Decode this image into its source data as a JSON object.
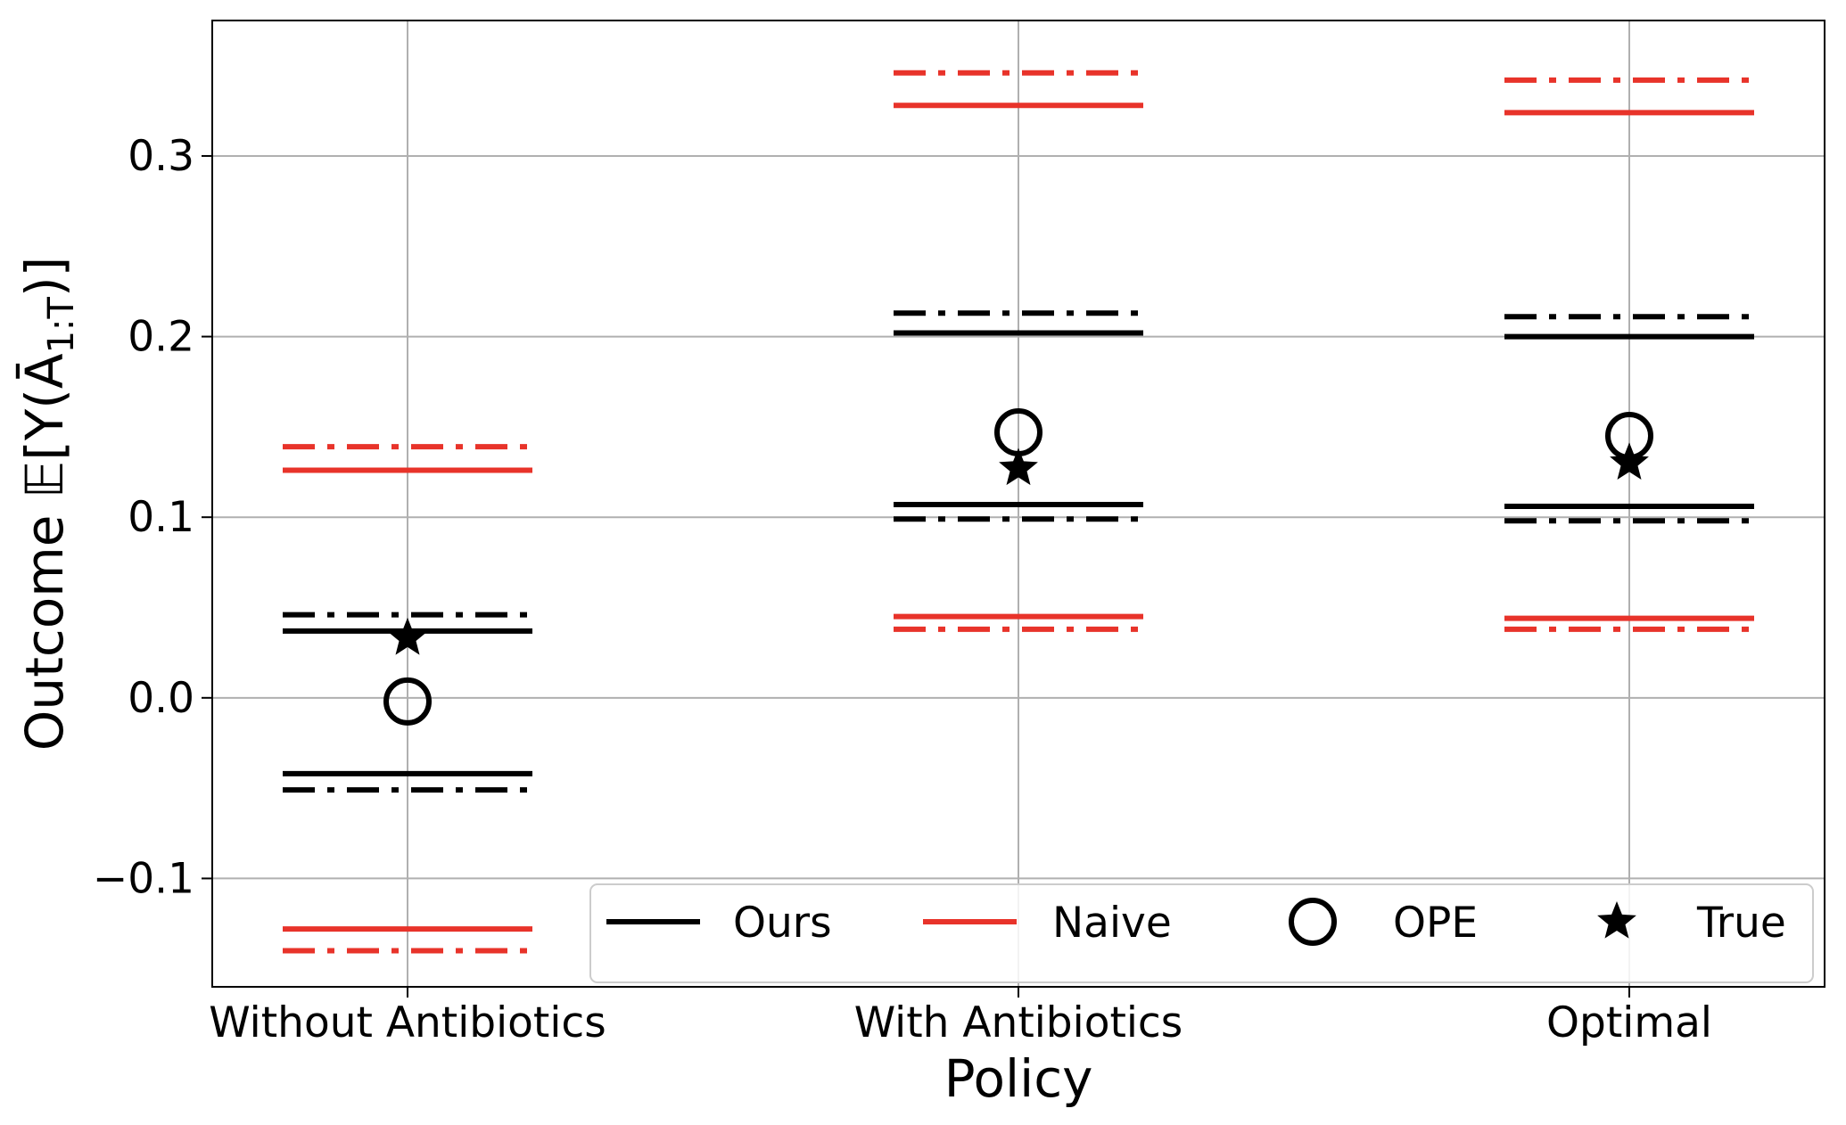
{
  "chart_data": {
    "type": "scatter",
    "xlabel": "Policy",
    "ylabel": "Outcome 𝔼[Y(Ā",
    "ylabel_sub": "1:T",
    "ylabel_end": ")]",
    "categories": [
      "Without Antibiotics",
      "With Antibiotics",
      "Optimal"
    ],
    "ylim": [
      -0.16,
      0.375
    ],
    "yticks": [
      -0.1,
      0.0,
      0.1,
      0.2,
      0.3
    ],
    "ytick_labels": [
      "−0.1",
      "0.0",
      "0.1",
      "0.2",
      "0.3"
    ],
    "grid": true,
    "legend_position": "lower-right",
    "legend": [
      {
        "name": "Ours",
        "marker": "line",
        "color": "#000000"
      },
      {
        "name": "Naive",
        "marker": "line",
        "color": "#e8332a"
      },
      {
        "name": "OPE",
        "marker": "circle",
        "color": "#000000"
      },
      {
        "name": "True",
        "marker": "star",
        "color": "#000000"
      }
    ],
    "series": [
      {
        "name": "Ours",
        "color": "#000000",
        "upper_solid": [
          0.037,
          0.202,
          0.2
        ],
        "upper_dashdot": [
          0.046,
          0.213,
          0.211
        ],
        "lower_solid": [
          -0.042,
          0.107,
          0.106
        ],
        "lower_dashdot": [
          -0.051,
          0.099,
          0.098
        ]
      },
      {
        "name": "Naive",
        "color": "#e8332a",
        "upper_solid": [
          0.126,
          0.328,
          0.324
        ],
        "upper_dashdot": [
          0.139,
          0.346,
          0.342
        ],
        "lower_solid": [
          -0.128,
          0.045,
          0.044
        ],
        "lower_dashdot": [
          -0.14,
          0.038,
          0.038
        ]
      },
      {
        "name": "OPE",
        "color": "#000000",
        "values": [
          -0.002,
          0.147,
          0.145
        ]
      },
      {
        "name": "True",
        "color": "#000000",
        "values": [
          0.033,
          0.127,
          0.13
        ]
      }
    ]
  }
}
